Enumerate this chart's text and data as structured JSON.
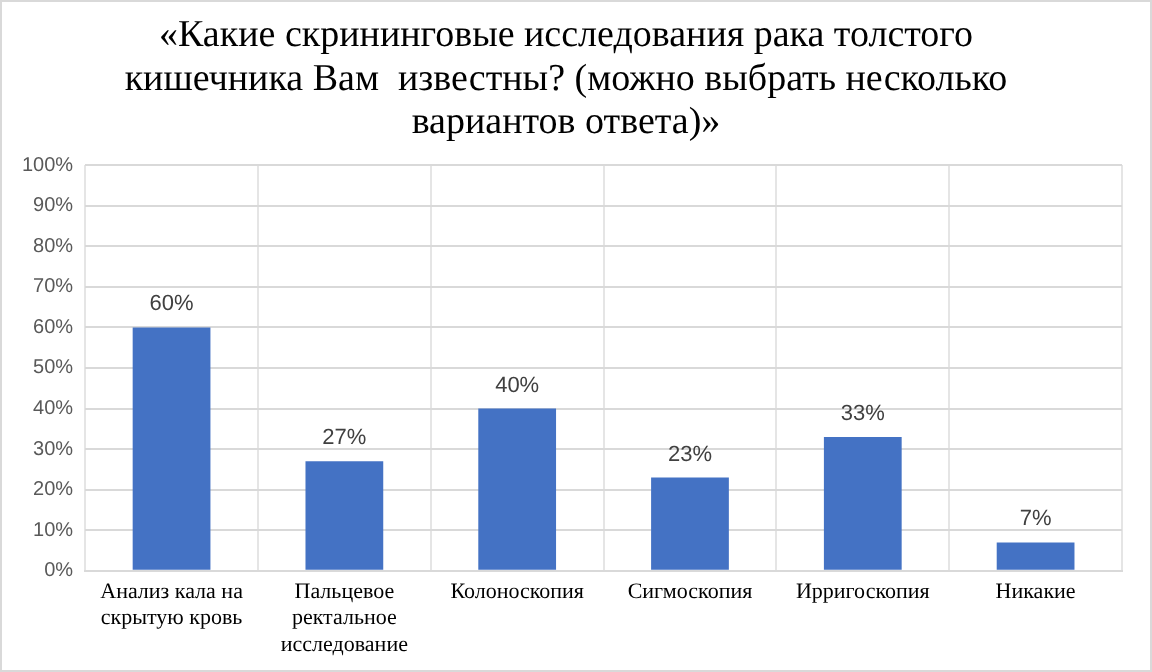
{
  "chart_data": {
    "type": "bar",
    "title": "«Какие скрининговые исследования рака толстого кишечника Вам  известны? (можно выбрать несколько вариантов ответа)»",
    "categories": [
      "Анализ кала на скрытую кровь",
      "Пальцевое ректальное исследование",
      "Колоноскопия",
      "Сигмоскопия",
      "Ирригоскопия",
      "Никакие"
    ],
    "values": [
      60,
      27,
      40,
      23,
      33,
      7
    ],
    "value_labels": [
      "60%",
      "27%",
      "40%",
      "23%",
      "33%",
      "7%"
    ],
    "color": "#4472c4",
    "ylim": [
      0,
      100
    ],
    "yticks": [
      {
        "value": 0,
        "label": "0%"
      },
      {
        "value": 10,
        "label": "10%"
      },
      {
        "value": 20,
        "label": "20%"
      },
      {
        "value": 30,
        "label": "30%"
      },
      {
        "value": 40,
        "label": "40%"
      },
      {
        "value": 50,
        "label": "50%"
      },
      {
        "value": 60,
        "label": "60%"
      },
      {
        "value": 70,
        "label": "70%"
      },
      {
        "value": 80,
        "label": "80%"
      },
      {
        "value": 90,
        "label": "90%"
      },
      {
        "value": 100,
        "label": "100%"
      }
    ],
    "grid": true
  }
}
